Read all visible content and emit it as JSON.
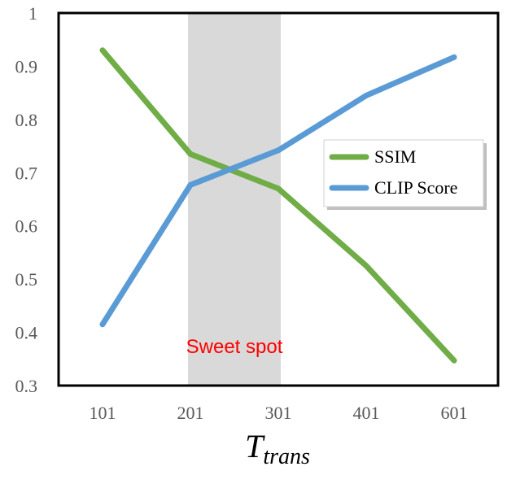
{
  "chart_data": {
    "type": "line",
    "x": [
      "101",
      "201",
      "301",
      "401",
      "601"
    ],
    "series": [
      {
        "name": "SSIM",
        "values": [
          0.93,
          0.735,
          0.67,
          0.525,
          0.347
        ],
        "color": "#70ad47"
      },
      {
        "name": "CLIP Score",
        "values": [
          0.415,
          0.677,
          0.742,
          0.845,
          0.917
        ],
        "color": "#5b9bd5"
      }
    ],
    "ylim": [
      0.3,
      1.0
    ],
    "y_ticks": [
      "0.3",
      "0.4",
      "0.5",
      "0.6",
      "0.7",
      "0.8",
      "0.9",
      "1"
    ],
    "xlabel": {
      "main": "T",
      "subscript": "trans"
    },
    "ylabel": "",
    "title": "",
    "grid": false,
    "legend_position": "right",
    "highlight": {
      "from_category": "201",
      "to_category": "301",
      "label": "Sweet spot",
      "label_color": "#ff0000",
      "fill_color": "#d9d9d9"
    }
  }
}
